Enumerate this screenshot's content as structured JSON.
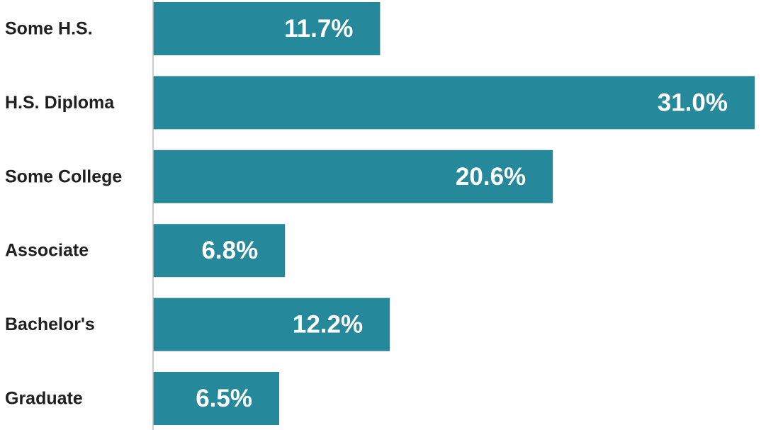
{
  "chart_data": {
    "type": "bar",
    "orientation": "horizontal",
    "categories": [
      "Some H.S.",
      "H.S. Diploma",
      "Some College",
      "Associate",
      "Bachelor's",
      "Graduate"
    ],
    "values": [
      11.7,
      31.0,
      20.6,
      6.8,
      12.2,
      6.5
    ],
    "value_labels": [
      "11.7%",
      "31.0%",
      "20.6%",
      "6.8%",
      "12.2%",
      "6.5%"
    ],
    "xlim": [
      0,
      31.0
    ],
    "title": "",
    "xlabel": "",
    "ylabel": "",
    "grid": false,
    "legend": "none",
    "colors": {
      "bar": "#26899b",
      "axis": "#bdbdbd",
      "category_text": "#1f1f1f",
      "value_text": "#ffffff"
    }
  }
}
